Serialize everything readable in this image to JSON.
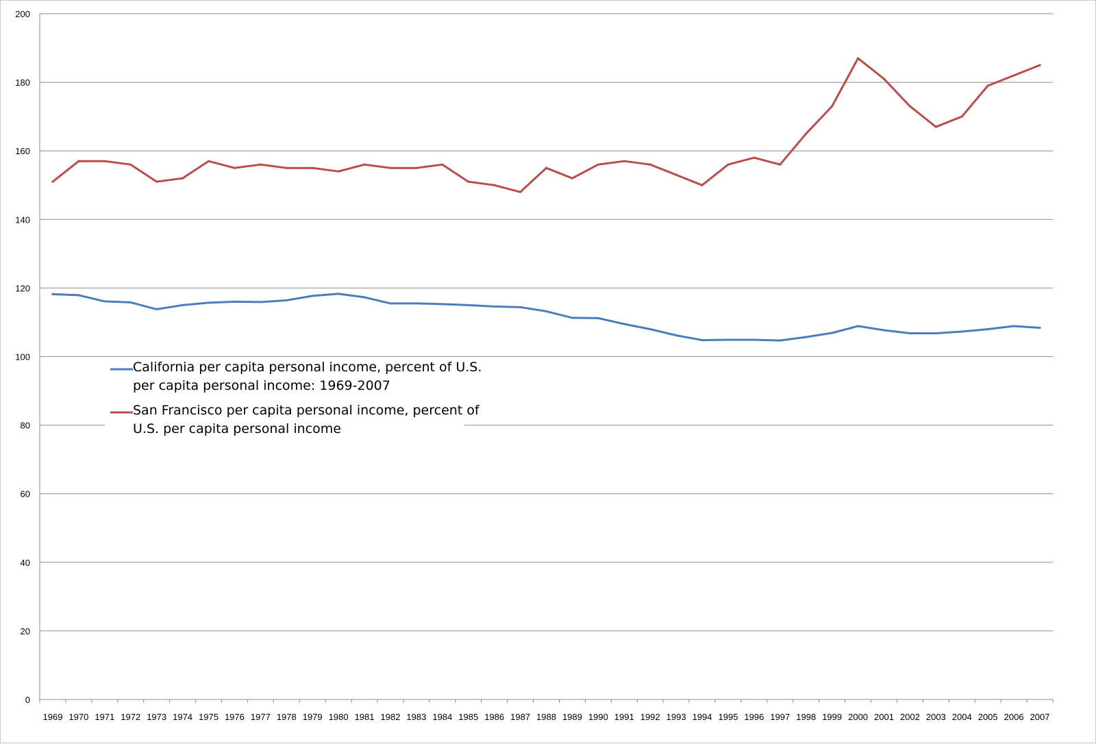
{
  "chart_data": {
    "type": "line",
    "title": "",
    "xlabel": "",
    "ylabel": "",
    "ylim": [
      0,
      200
    ],
    "y_ticks": [
      "0",
      "20",
      "40",
      "60",
      "80",
      "100",
      "120",
      "140",
      "160",
      "180",
      "200"
    ],
    "grid": "horizontal",
    "legend_position": "center-left",
    "categories": [
      "1969",
      "1970",
      "1971",
      "1972",
      "1973",
      "1974",
      "1975",
      "1976",
      "1977",
      "1978",
      "1979",
      "1980",
      "1981",
      "1982",
      "1983",
      "1984",
      "1985",
      "1986",
      "1987",
      "1988",
      "1989",
      "1990",
      "1991",
      "1992",
      "1993",
      "1994",
      "1995",
      "1996",
      "1997",
      "1998",
      "1999",
      "2000",
      "2001",
      "2002",
      "2003",
      "2004",
      "2005",
      "2006",
      "2007"
    ],
    "series": [
      {
        "name": "California per capita personal income, percent of U.S. per capita personal income: 1969-2007",
        "legend_lines": [
          "California per capita personal income, percent of U.S.",
          "per capita personal income: 1969-2007"
        ],
        "color": "#4a7ebb",
        "values": [
          118.2,
          117.9,
          116.1,
          115.8,
          113.8,
          115.0,
          115.7,
          116.0,
          115.9,
          116.4,
          117.7,
          118.3,
          117.3,
          115.5,
          115.5,
          115.3,
          115.0,
          114.6,
          114.4,
          113.2,
          111.3,
          111.2,
          109.5,
          108.0,
          106.2,
          104.8,
          104.9,
          104.9,
          104.7,
          105.7,
          106.9,
          108.9,
          107.7,
          106.8,
          106.8,
          107.3,
          108.0,
          108.9,
          108.4
        ]
      },
      {
        "name": "San Francisco per capita personal income, percent of U.S. per capita personal income",
        "legend_lines": [
          "San Francisco per capita personal income, percent of",
          "U.S. per capita personal income"
        ],
        "color": "#be4b48",
        "values": [
          151,
          157,
          157,
          156,
          151,
          152,
          157,
          155,
          156,
          155,
          155,
          154,
          156,
          155,
          155,
          156,
          151,
          150,
          148,
          155,
          152,
          156,
          157,
          156,
          153,
          150,
          156,
          158,
          156,
          165,
          173,
          187,
          181,
          173,
          167,
          170,
          179,
          182,
          185
        ]
      }
    ]
  }
}
